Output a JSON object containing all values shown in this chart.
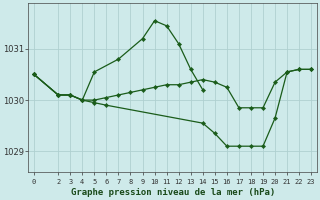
{
  "title": "Graphe pression niveau de la mer (hPa)",
  "bg_color": "#ceeaea",
  "grid_color": "#afd0d0",
  "line_color": "#1a5c1a",
  "marker_color": "#1a5c1a",
  "xlim": [
    -0.5,
    23.5
  ],
  "ylim": [
    1028.6,
    1031.9
  ],
  "yticks": [
    1029,
    1030,
    1031
  ],
  "xtick_labels": [
    "0",
    "2",
    "3",
    "4",
    "5",
    "6",
    "7",
    "8",
    "9",
    "10",
    "11",
    "12",
    "13",
    "14",
    "15",
    "16",
    "17",
    "18",
    "19",
    "20",
    "21",
    "22",
    "23"
  ],
  "series": [
    {
      "x": [
        0,
        2,
        3,
        4,
        5,
        7,
        9,
        10,
        11,
        12,
        13,
        14
      ],
      "y": [
        1030.5,
        1030.1,
        1030.1,
        1030.0,
        1030.55,
        1030.8,
        1031.2,
        1031.55,
        1031.45,
        1031.1,
        1030.6,
        1030.2
      ]
    },
    {
      "x": [
        0,
        2,
        3,
        4,
        5,
        6,
        7,
        8,
        9,
        10,
        11,
        12,
        13,
        14,
        15,
        16,
        17,
        18,
        19,
        20,
        21,
        22,
        23
      ],
      "y": [
        1030.5,
        1030.1,
        1030.1,
        1030.0,
        1030.0,
        1030.05,
        1030.1,
        1030.15,
        1030.2,
        1030.25,
        1030.3,
        1030.3,
        1030.35,
        1030.4,
        1030.35,
        1030.25,
        1029.85,
        1029.85,
        1029.85,
        1030.35,
        1030.55,
        1030.6,
        1030.6
      ]
    },
    {
      "x": [
        0,
        2,
        3,
        4,
        5,
        6,
        14,
        15,
        16,
        17,
        18,
        19,
        20,
        21,
        22,
        23
      ],
      "y": [
        1030.5,
        1030.1,
        1030.1,
        1030.0,
        1029.95,
        1029.9,
        1029.55,
        1029.35,
        1029.1,
        1029.1,
        1029.1,
        1029.1,
        1029.65,
        1030.55,
        1030.6,
        1030.6
      ]
    }
  ]
}
